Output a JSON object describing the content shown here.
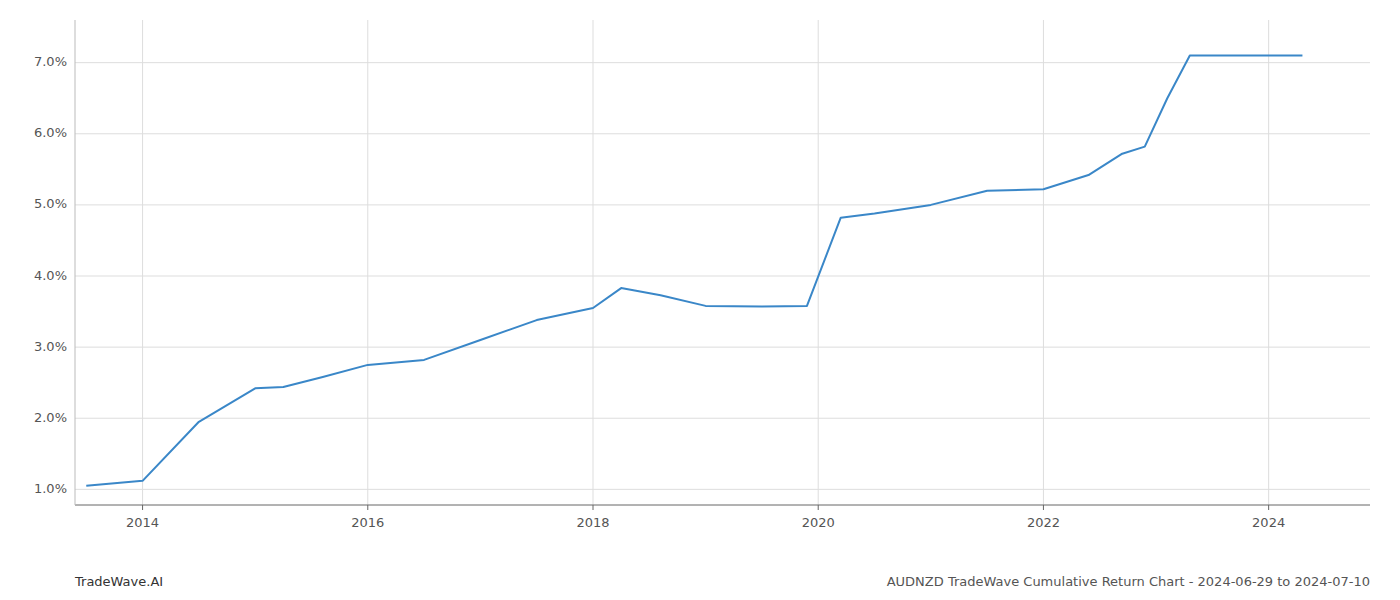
{
  "chart_data": {
    "type": "line",
    "title": "AUDNZD TradeWave Cumulative Return Chart - 2024-06-29 to 2024-07-10",
    "annotations": [
      "TradeWave.AI"
    ],
    "x": [
      2013.5,
      2014.0,
      2014.5,
      2015.0,
      2015.25,
      2015.6,
      2016.0,
      2016.5,
      2017.0,
      2017.5,
      2018.0,
      2018.25,
      2018.6,
      2019.0,
      2019.5,
      2019.9,
      2020.2,
      2020.5,
      2021.0,
      2021.5,
      2022.0,
      2022.4,
      2022.7,
      2022.9,
      2023.1,
      2023.3,
      2024.0,
      2024.3
    ],
    "values": [
      1.05,
      1.12,
      1.95,
      2.42,
      2.44,
      2.58,
      2.75,
      2.82,
      3.1,
      3.38,
      3.55,
      3.83,
      3.73,
      3.58,
      3.57,
      3.58,
      4.82,
      4.88,
      5.0,
      5.2,
      5.22,
      5.42,
      5.72,
      5.82,
      6.5,
      7.1,
      7.1,
      7.1
    ],
    "color": "#3a87c8",
    "xlim": [
      2013.4,
      2024.9
    ],
    "xticks": [
      2014,
      2016,
      2018,
      2020,
      2022,
      2024
    ],
    "ylim": [
      0.78,
      7.6
    ],
    "yticks": [
      {
        "value": 1.0,
        "label": "1.0%"
      },
      {
        "value": 2.0,
        "label": "2.0%"
      },
      {
        "value": 3.0,
        "label": "3.0%"
      },
      {
        "value": 4.0,
        "label": "4.0%"
      },
      {
        "value": 5.0,
        "label": "5.0%"
      },
      {
        "value": 6.0,
        "label": "6.0%"
      },
      {
        "value": 7.0,
        "label": "7.0%"
      }
    ],
    "grid": true
  }
}
